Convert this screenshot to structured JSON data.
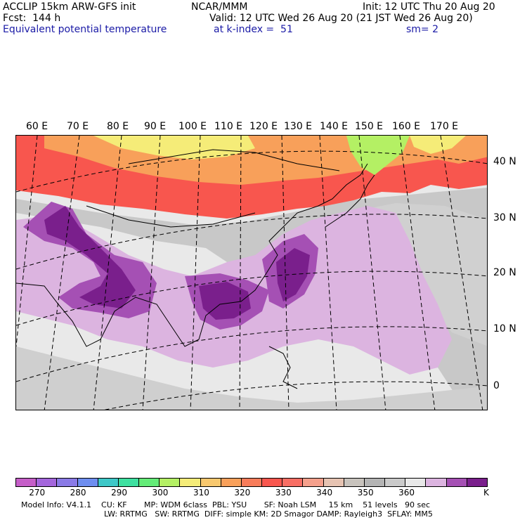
{
  "header": {
    "model": "ACCLIP 15km ARW-GFS init",
    "center": "NCAR/MMM",
    "init": "Init: 12 UTC Thu 20 Aug 20",
    "fcst": "Fcst:  144 h",
    "valid": "Valid: 12 UTC Wed 26 Aug 20 (21 JST Wed 26 Aug 20)",
    "field": "Equivalent potential temperature",
    "level": "at k-index =  51",
    "smooth": "sm= 2"
  },
  "map": {
    "lon_labels": [
      "60 E",
      "70 E",
      "80 E",
      "90 E",
      "100 E",
      "110 E",
      "120 E",
      "130 E",
      "140 E",
      "150 E",
      "160 E",
      "170 E"
    ],
    "lat_labels": [
      "40 N",
      "30 N",
      "20 N",
      "10 N",
      "0"
    ],
    "field_colors": {
      "background": "#e9e9e9",
      "grey": "#c8c8c8",
      "lavender": "#dcb4e0",
      "purple": "#a550b4",
      "deep_purple": "#7a1f8c",
      "red": "#f8564e",
      "orange": "#f8a05a",
      "yellow": "#f5ec78",
      "green": "#b4f064"
    }
  },
  "colorbar": {
    "colors": [
      "#c55ec8",
      "#a466dc",
      "#8a7ae6",
      "#6e8ef0",
      "#3ec8c8",
      "#3ee0a0",
      "#64ec78",
      "#b4f064",
      "#f5ec78",
      "#f8c86e",
      "#f8a05a",
      "#f87c5a",
      "#f8564e",
      "#f86e64",
      "#f5a08c",
      "#e6c3b2",
      "#c8c3bd",
      "#b4b4b4",
      "#cacaca",
      "#e8e8e8",
      "#dcb4e0",
      "#a550b4",
      "#7a1f8c"
    ],
    "ticks": [
      "270",
      "280",
      "290",
      "300",
      "310",
      "320",
      "330",
      "340",
      "350",
      "360"
    ],
    "unit": "K"
  },
  "footer": {
    "line1": "Model Info: V4.1.1    CU: KF       MP: WDM 6class  PBL: YSU       SF: Noah LSM     15 km    51 levels   90 sec",
    "line2": "LW: RRTMG   SW: RRTMG  DIFF: simple KM: 2D Smagor DAMP: Rayleigh3  SFLAY: MM5"
  }
}
